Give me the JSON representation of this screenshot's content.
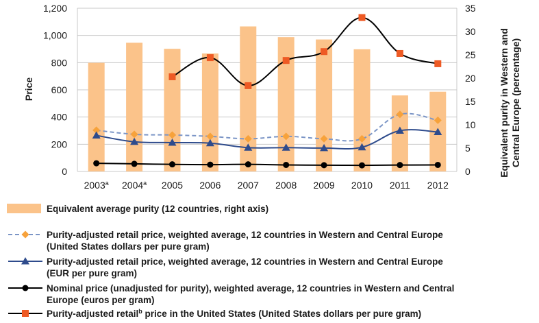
{
  "chart_data": {
    "type": "bar",
    "categories": [
      "2003",
      "2004",
      "2005",
      "2006",
      "2007",
      "2008",
      "2009",
      "2010",
      "2011",
      "2012"
    ],
    "category_superscripts": [
      "a",
      "a",
      "",
      "",
      "",
      "",
      "",
      "",
      "",
      ""
    ],
    "left_axis": {
      "title": "Price",
      "ylim": [
        0,
        1200
      ],
      "ticks": [
        "0",
        "200",
        "400",
        "600",
        "800",
        "1,000",
        "1,200"
      ]
    },
    "right_axis": {
      "title_line1": "Equivalent purity in Western and",
      "title_line2": "Central Europe (percentage)",
      "ylim": [
        0,
        35
      ],
      "ticks": [
        "0",
        "5",
        "10",
        "15",
        "20",
        "25",
        "30",
        "35"
      ]
    },
    "grid": true,
    "bars": {
      "name": "Equivalent average purity (12 countries, right axis)",
      "color": "#fbc38a",
      "values": [
        23.3,
        27.6,
        26.3,
        25.3,
        31.1,
        28.8,
        28.3,
        26.2,
        16.3,
        17.1
      ]
    },
    "series": [
      {
        "name_line1": "Purity-adjusted retail price, weighted average, 12 countries in Western and Central Europe",
        "name_line2": "(United States dollars per pure gram)",
        "color": "#7b95c6",
        "marker": "diamond",
        "marker_color": "#f7a23b",
        "dashed": true,
        "values": [
          303,
          273,
          268,
          258,
          240,
          258,
          240,
          240,
          420,
          376
        ]
      },
      {
        "name_line1": "Purity-adjusted retail price, weighted average, 12 countries in Western and Central Europe",
        "name_line2": "(EUR per pure gram)",
        "color": "#2e4b8c",
        "marker": "triangle",
        "marker_color": "#2e4b8c",
        "dashed": false,
        "values": [
          265,
          218,
          212,
          208,
          175,
          175,
          172,
          178,
          300,
          290
        ]
      },
      {
        "name_line1": "Nominal price (unadjusted for purity), weighted average, 12 countries in Western and Central",
        "name_line2": "Europe (euros per gram)",
        "color": "#000000",
        "marker": "circle",
        "marker_color": "#000000",
        "dashed": false,
        "values": [
          60,
          56,
          52,
          50,
          52,
          48,
          46,
          45,
          47,
          48
        ]
      },
      {
        "name_line1": "Purity-adjusted retail",
        "name_superscript": "b",
        "name_line1_rest": " price in the United States (United States dollars per pure gram)",
        "color": "#000000",
        "marker": "square",
        "marker_color": "#ee5a24",
        "dashed": false,
        "axis": "right",
        "start_index": 2,
        "values": [
          null,
          null,
          20.3,
          24.4,
          18.4,
          23.8,
          25.7,
          33.0,
          25.3,
          23.1
        ]
      }
    ]
  }
}
